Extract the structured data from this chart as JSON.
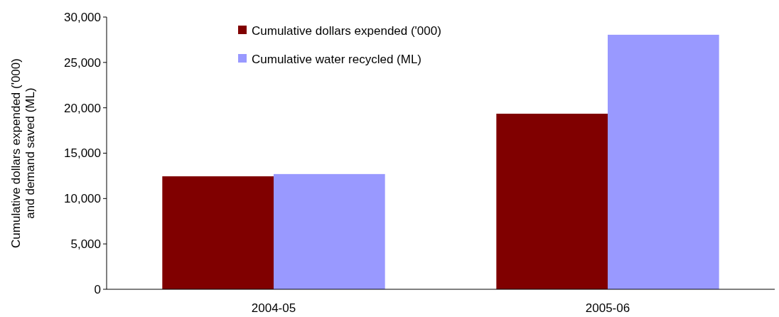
{
  "chart_data": {
    "type": "bar",
    "categories": [
      "2004-05",
      "2005-06"
    ],
    "series": [
      {
        "name": "Cumulative dollars expended ('000)",
        "color": "#800000",
        "values": [
          12450,
          19350
        ]
      },
      {
        "name": "Cumulative water recycled (ML)",
        "color": "#9999ff",
        "values": [
          12700,
          28050
        ]
      }
    ],
    "ylabel": "Cumulative dollars expended ('000)\nand demand saved (ML)",
    "ylim": [
      0,
      30000
    ],
    "yticks": [
      {
        "value": 0,
        "label": "0"
      },
      {
        "value": 5000,
        "label": "5,000"
      },
      {
        "value": 10000,
        "label": "10,000"
      },
      {
        "value": 15000,
        "label": "15,000"
      },
      {
        "value": 20000,
        "label": "20,000"
      },
      {
        "value": 25000,
        "label": "25,000"
      },
      {
        "value": 30000,
        "label": "30,000"
      }
    ],
    "grid": false,
    "legend": "top"
  }
}
